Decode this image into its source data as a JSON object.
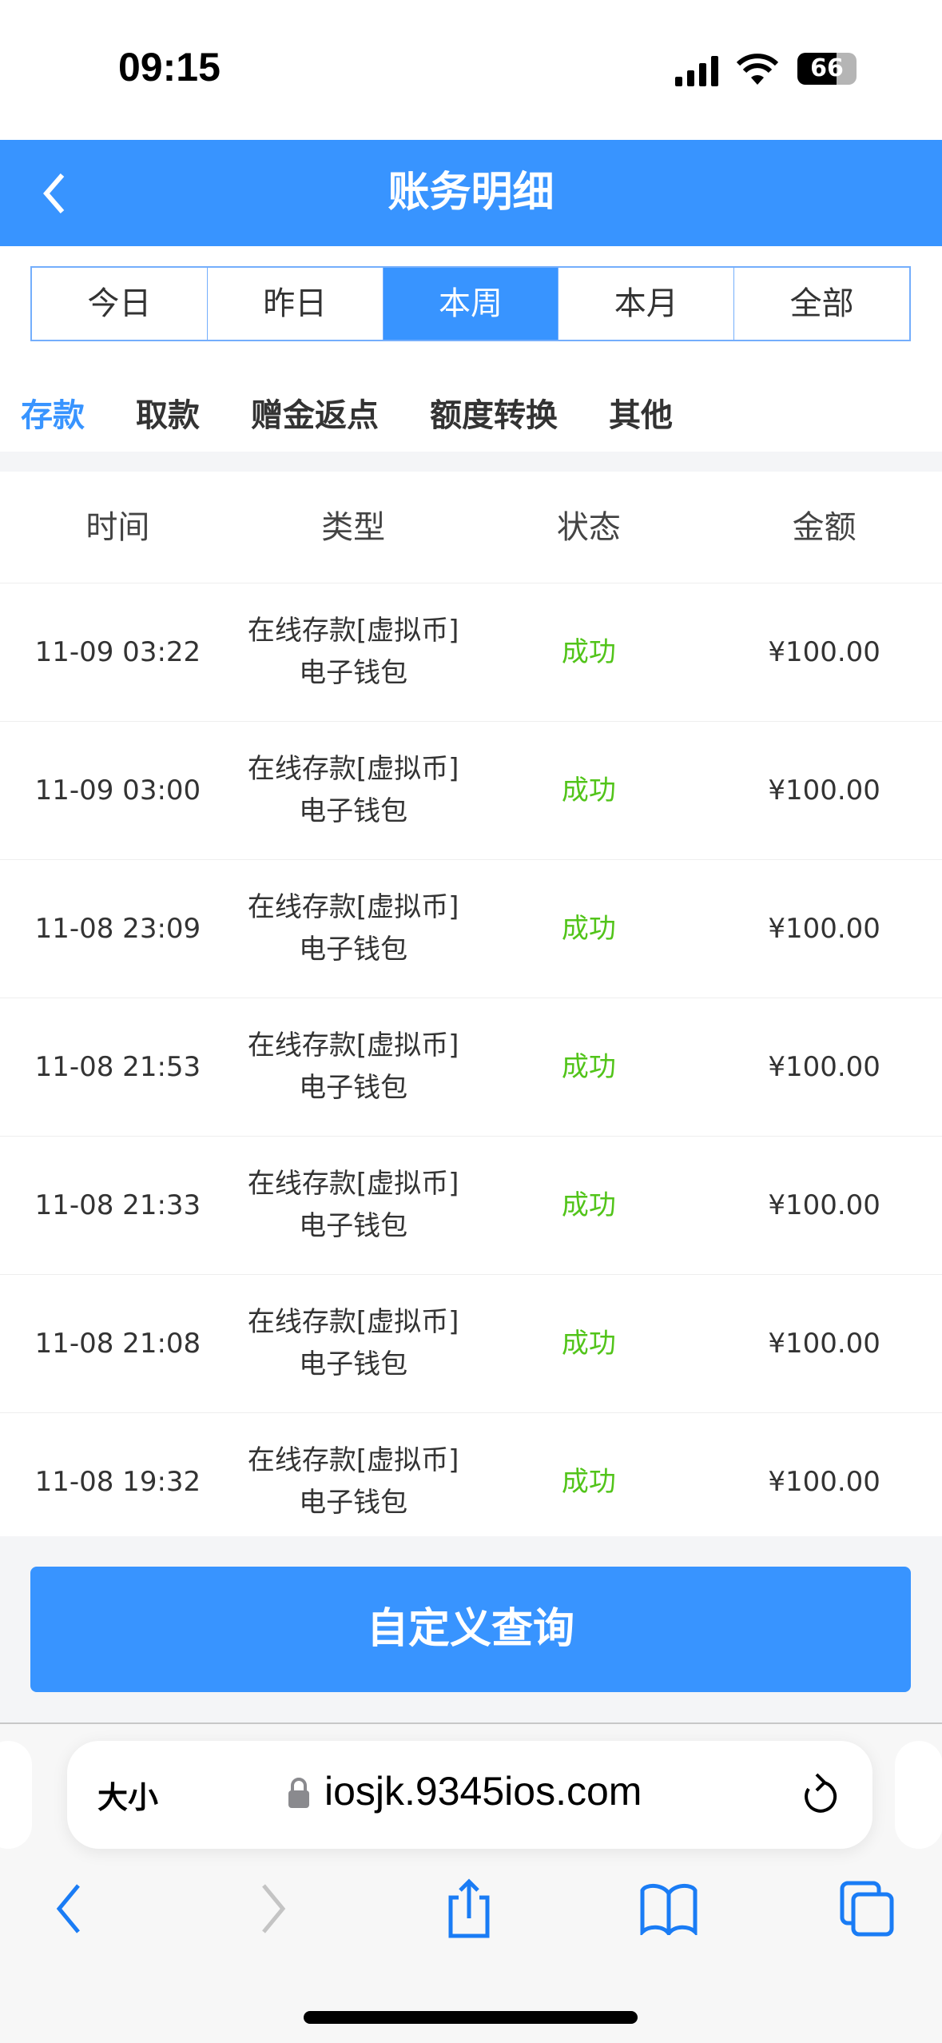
{
  "status": {
    "time": "09:15",
    "battery": "66"
  },
  "nav": {
    "title": "账务明细"
  },
  "periods": [
    {
      "label": "今日"
    },
    {
      "label": "昨日"
    },
    {
      "label": "本周",
      "active": true
    },
    {
      "label": "本月"
    },
    {
      "label": "全部"
    }
  ],
  "subtabs": [
    {
      "label": "存款",
      "active": true
    },
    {
      "label": "取款"
    },
    {
      "label": "赠金返点"
    },
    {
      "label": "额度转换"
    },
    {
      "label": "其他"
    }
  ],
  "table": {
    "headers": [
      "时间",
      "类型",
      "状态",
      "金额"
    ],
    "rows": [
      {
        "time": "11-09 03:22",
        "type1": "在线存款[虚拟币]",
        "type2": "电子钱包",
        "status": "成功",
        "amount": "¥100.00"
      },
      {
        "time": "11-09 03:00",
        "type1": "在线存款[虚拟币]",
        "type2": "电子钱包",
        "status": "成功",
        "amount": "¥100.00"
      },
      {
        "time": "11-08 23:09",
        "type1": "在线存款[虚拟币]",
        "type2": "电子钱包",
        "status": "成功",
        "amount": "¥100.00"
      },
      {
        "time": "11-08 21:53",
        "type1": "在线存款[虚拟币]",
        "type2": "电子钱包",
        "status": "成功",
        "amount": "¥100.00"
      },
      {
        "time": "11-08 21:33",
        "type1": "在线存款[虚拟币]",
        "type2": "电子钱包",
        "status": "成功",
        "amount": "¥100.00"
      },
      {
        "time": "11-08 21:08",
        "type1": "在线存款[虚拟币]",
        "type2": "电子钱包",
        "status": "成功",
        "amount": "¥100.00"
      },
      {
        "time": "11-08 19:32",
        "type1": "在线存款[虚拟币]",
        "type2": "电子钱包",
        "status": "成功",
        "amount": "¥100.00"
      }
    ]
  },
  "custom_query": "自定义查询",
  "browser": {
    "text_size": "大小",
    "url": "iosjk.9345ios.com"
  },
  "colors": {
    "primary": "#3894ff",
    "success": "#52c41a"
  }
}
